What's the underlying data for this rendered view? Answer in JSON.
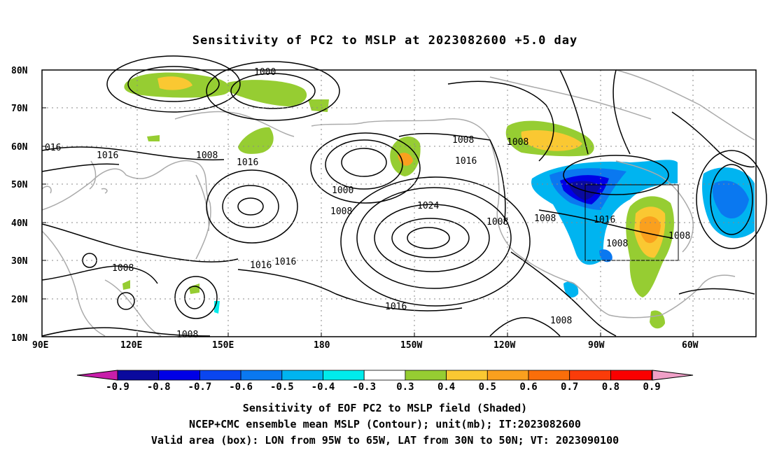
{
  "title": "Sensitivity of PC2 to MSLP at 2023082600 +5.0 day",
  "lat_labels": [
    "80N",
    "70N",
    "60N",
    "50N",
    "40N",
    "30N",
    "20N",
    "10N"
  ],
  "lon_labels": [
    "90E",
    "120E",
    "150E",
    "180",
    "150W",
    "120W",
    "90W",
    "60W"
  ],
  "contour_labels": [
    "1000",
    "1016",
    "016",
    "1008",
    "1016",
    "1008",
    "1000",
    "1016",
    "1024",
    "1008",
    "1008",
    "1008",
    "1016",
    "1016",
    "1016",
    "1008",
    "1008",
    "1016",
    "1008",
    "1008",
    "1008"
  ],
  "colorbar": {
    "labels": [
      "-0.9",
      "-0.8",
      "-0.7",
      "-0.6",
      "-0.5",
      "-0.4",
      "-0.3",
      "0.3",
      "0.4",
      "0.5",
      "0.6",
      "0.7",
      "0.8",
      "0.9"
    ],
    "colors": [
      "#0a0a9e",
      "#0000e6",
      "#0a46f0",
      "#0a78f0",
      "#00b4f0",
      "#00ebeb",
      "#ffffff",
      "#96cd32",
      "#fac832",
      "#faa01e",
      "#fa6e0a",
      "#fa3c0a",
      "#fa0000"
    ],
    "left_arrow_color": "#c81eaa",
    "right_arrow_color": "#f0a0c8"
  },
  "captions": [
    "Sensitivity of EOF PC2 to MSLP field (Shaded)",
    "NCEP+CMC ensemble mean MSLP (Contour); unit(mb); IT:2023082600",
    "Valid area (box): LON from 95W to 65W, LAT from 30N to 50N; VT: 2023090100"
  ]
}
